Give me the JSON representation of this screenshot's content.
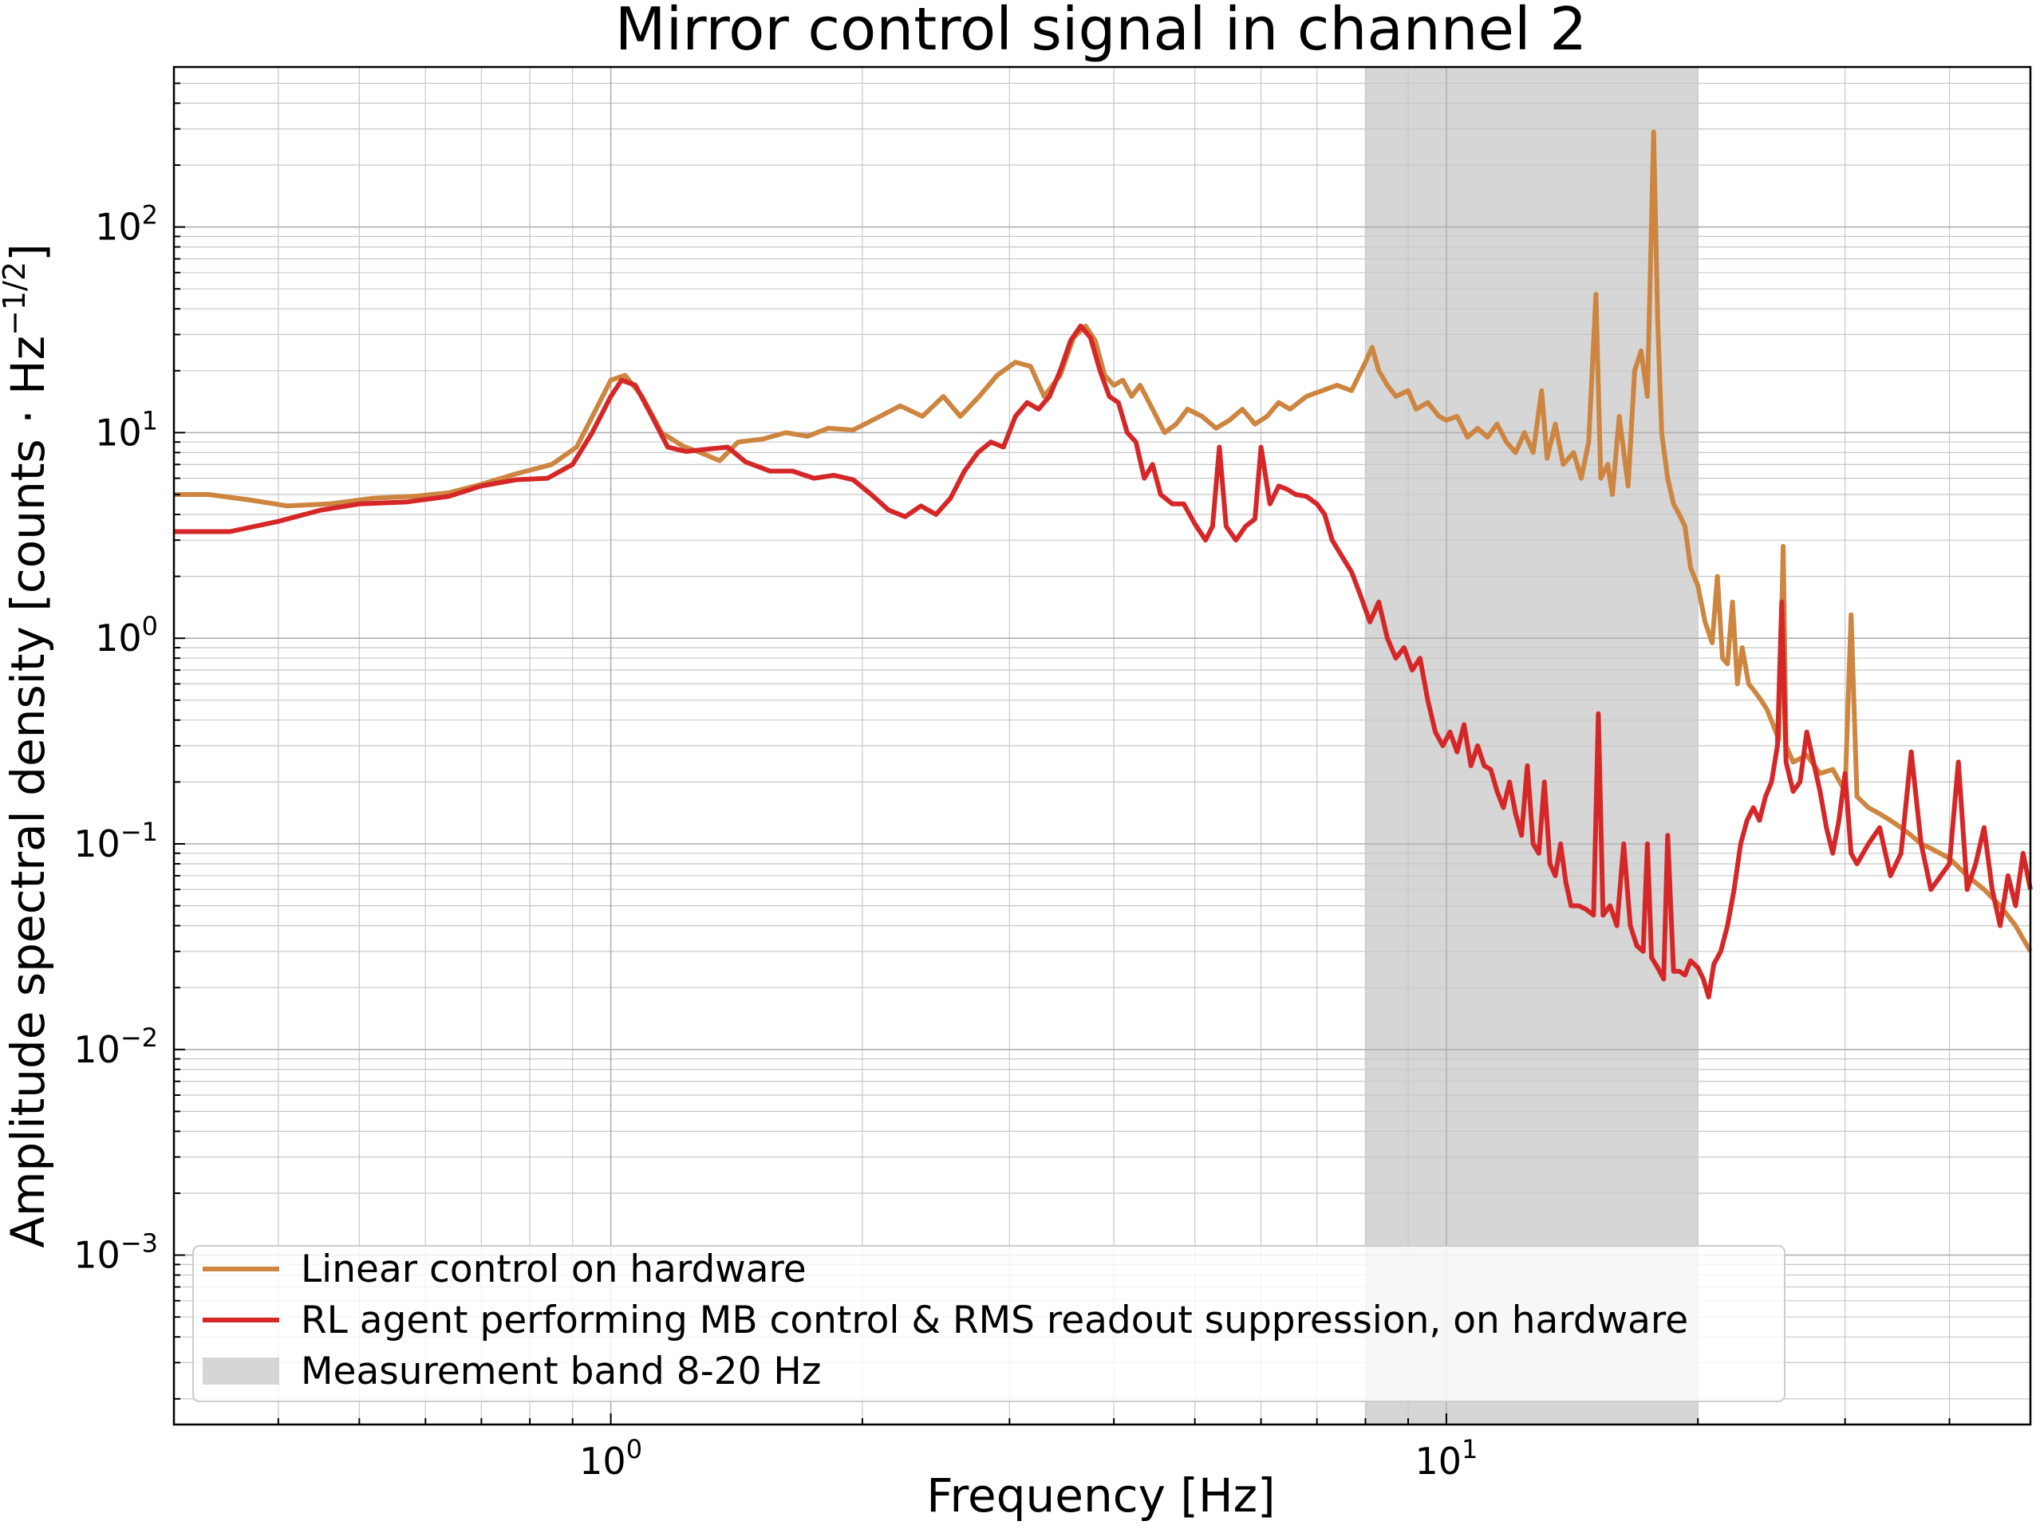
{
  "chart_data": {
    "type": "line",
    "title": "Mirror control signal in channel 2",
    "xlabel": "Frequency [Hz]",
    "ylabel": "Amplitude spectral density [counts · Hz",
    "ylabel_sup": "−1/2",
    "ylabel_end": "]",
    "xscale": "log",
    "yscale": "log",
    "xlim": [
      0.3,
      50
    ],
    "ylim": [
      0.00015,
      600
    ],
    "grid": "both (major and minor)",
    "legend_placement": "lower-left",
    "x_tick_labels": [
      {
        "value": 1,
        "base": "10",
        "exp": "0"
      },
      {
        "value": 10,
        "base": "10",
        "exp": "1"
      }
    ],
    "y_tick_labels": [
      {
        "value": 0.001,
        "base": "10",
        "exp": "−3"
      },
      {
        "value": 0.01,
        "base": "10",
        "exp": "−2"
      },
      {
        "value": 0.1,
        "base": "10",
        "exp": "−1"
      },
      {
        "value": 1,
        "base": "10",
        "exp": "0"
      },
      {
        "value": 10,
        "base": "10",
        "exp": "1"
      },
      {
        "value": 100,
        "base": "10",
        "exp": "2"
      }
    ],
    "band": {
      "name": "Measurement band 8-20 Hz",
      "x_range": [
        8,
        20
      ],
      "color": "#d6d6d6"
    },
    "series": [
      {
        "name": "Linear control on hardware",
        "color": "#cd853f",
        "points": [
          [
            0.3,
            5.0
          ],
          [
            0.33,
            5.0
          ],
          [
            0.37,
            4.7
          ],
          [
            0.41,
            4.4
          ],
          [
            0.46,
            4.5
          ],
          [
            0.52,
            4.8
          ],
          [
            0.58,
            4.9
          ],
          [
            0.64,
            5.1
          ],
          [
            0.7,
            5.6
          ],
          [
            0.77,
            6.3
          ],
          [
            0.85,
            7.0
          ],
          [
            0.91,
            8.5
          ],
          [
            0.96,
            13
          ],
          [
            1.0,
            18
          ],
          [
            1.04,
            19
          ],
          [
            1.09,
            15
          ],
          [
            1.15,
            10
          ],
          [
            1.22,
            8.6
          ],
          [
            1.28,
            8.0
          ],
          [
            1.35,
            7.3
          ],
          [
            1.42,
            9.0
          ],
          [
            1.52,
            9.3
          ],
          [
            1.62,
            10
          ],
          [
            1.72,
            9.6
          ],
          [
            1.82,
            10.5
          ],
          [
            1.95,
            10.3
          ],
          [
            2.1,
            12
          ],
          [
            2.22,
            13.5
          ],
          [
            2.36,
            12
          ],
          [
            2.5,
            15
          ],
          [
            2.62,
            12
          ],
          [
            2.76,
            15
          ],
          [
            2.9,
            19
          ],
          [
            3.05,
            22
          ],
          [
            3.18,
            21
          ],
          [
            3.3,
            15
          ],
          [
            3.45,
            19
          ],
          [
            3.58,
            29
          ],
          [
            3.7,
            33
          ],
          [
            3.8,
            28
          ],
          [
            3.9,
            19
          ],
          [
            4.0,
            17
          ],
          [
            4.1,
            18
          ],
          [
            4.2,
            15
          ],
          [
            4.3,
            17
          ],
          [
            4.45,
            13
          ],
          [
            4.6,
            10
          ],
          [
            4.75,
            11
          ],
          [
            4.9,
            13
          ],
          [
            5.1,
            12
          ],
          [
            5.3,
            10.5
          ],
          [
            5.5,
            11.5
          ],
          [
            5.7,
            13
          ],
          [
            5.9,
            11
          ],
          [
            6.1,
            12
          ],
          [
            6.3,
            14
          ],
          [
            6.5,
            13
          ],
          [
            6.8,
            15
          ],
          [
            7.1,
            16
          ],
          [
            7.4,
            17
          ],
          [
            7.7,
            16
          ],
          [
            8.0,
            22
          ],
          [
            8.15,
            26
          ],
          [
            8.3,
            20
          ],
          [
            8.5,
            17
          ],
          [
            8.7,
            15
          ],
          [
            9.0,
            16
          ],
          [
            9.2,
            13
          ],
          [
            9.5,
            14
          ],
          [
            9.8,
            12
          ],
          [
            10.0,
            11.5
          ],
          [
            10.3,
            12
          ],
          [
            10.6,
            9.5
          ],
          [
            10.9,
            10.5
          ],
          [
            11.2,
            9.5
          ],
          [
            11.5,
            11
          ],
          [
            11.8,
            9
          ],
          [
            12.1,
            8
          ],
          [
            12.4,
            10
          ],
          [
            12.7,
            8
          ],
          [
            13.0,
            16
          ],
          [
            13.2,
            7.5
          ],
          [
            13.5,
            11
          ],
          [
            13.8,
            7
          ],
          [
            14.2,
            8
          ],
          [
            14.5,
            6
          ],
          [
            14.8,
            9
          ],
          [
            15.1,
            47
          ],
          [
            15.3,
            6
          ],
          [
            15.6,
            7
          ],
          [
            15.8,
            5
          ],
          [
            16.1,
            12
          ],
          [
            16.5,
            5.5
          ],
          [
            16.8,
            20
          ],
          [
            17.1,
            25
          ],
          [
            17.4,
            15
          ],
          [
            17.7,
            290
          ],
          [
            17.9,
            35
          ],
          [
            18.1,
            10
          ],
          [
            18.4,
            6
          ],
          [
            18.7,
            4.5
          ],
          [
            19.0,
            4
          ],
          [
            19.3,
            3.5
          ],
          [
            19.6,
            2.2
          ],
          [
            20.0,
            1.8
          ],
          [
            20.4,
            1.2
          ],
          [
            20.8,
            0.95
          ],
          [
            21.1,
            2
          ],
          [
            21.4,
            0.8
          ],
          [
            21.7,
            0.75
          ],
          [
            22.0,
            1.5
          ],
          [
            22.3,
            0.6
          ],
          [
            22.6,
            0.9
          ],
          [
            23.0,
            0.6
          ],
          [
            23.4,
            0.55
          ],
          [
            23.8,
            0.5
          ],
          [
            24.2,
            0.45
          ],
          [
            24.6,
            0.38
          ],
          [
            25.0,
            0.32
          ],
          [
            25.3,
            2.8
          ],
          [
            25.5,
            0.3
          ],
          [
            26,
            0.25
          ],
          [
            27,
            0.27
          ],
          [
            28,
            0.22
          ],
          [
            29,
            0.23
          ],
          [
            30,
            0.18
          ],
          [
            30.5,
            1.3
          ],
          [
            31,
            0.17
          ],
          [
            32,
            0.15
          ],
          [
            33,
            0.14
          ],
          [
            34,
            0.13
          ],
          [
            35,
            0.12
          ],
          [
            36,
            0.11
          ],
          [
            37,
            0.1
          ],
          [
            38,
            0.095
          ],
          [
            40,
            0.085
          ],
          [
            42,
            0.07
          ],
          [
            44,
            0.06
          ],
          [
            46,
            0.05
          ],
          [
            48,
            0.04
          ],
          [
            50,
            0.03
          ]
        ]
      },
      {
        "name": "RL agent performing MB control & RMS readout suppression, on hardware",
        "color": "#d62728",
        "points": [
          [
            0.3,
            3.3
          ],
          [
            0.35,
            3.3
          ],
          [
            0.4,
            3.7
          ],
          [
            0.45,
            4.2
          ],
          [
            0.5,
            4.5
          ],
          [
            0.57,
            4.6
          ],
          [
            0.64,
            4.9
          ],
          [
            0.7,
            5.5
          ],
          [
            0.77,
            5.9
          ],
          [
            0.84,
            6.0
          ],
          [
            0.9,
            7.0
          ],
          [
            0.95,
            10
          ],
          [
            1.0,
            15
          ],
          [
            1.03,
            18
          ],
          [
            1.07,
            17
          ],
          [
            1.12,
            12
          ],
          [
            1.17,
            8.5
          ],
          [
            1.23,
            8.1
          ],
          [
            1.3,
            8.3
          ],
          [
            1.38,
            8.5
          ],
          [
            1.45,
            7.2
          ],
          [
            1.55,
            6.5
          ],
          [
            1.65,
            6.5
          ],
          [
            1.75,
            6.0
          ],
          [
            1.85,
            6.2
          ],
          [
            1.95,
            5.9
          ],
          [
            2.05,
            5.0
          ],
          [
            2.15,
            4.2
          ],
          [
            2.25,
            3.9
          ],
          [
            2.35,
            4.4
          ],
          [
            2.45,
            4.0
          ],
          [
            2.55,
            4.8
          ],
          [
            2.65,
            6.5
          ],
          [
            2.75,
            8
          ],
          [
            2.85,
            9
          ],
          [
            2.95,
            8.5
          ],
          [
            3.05,
            12
          ],
          [
            3.15,
            14
          ],
          [
            3.25,
            13
          ],
          [
            3.35,
            15
          ],
          [
            3.45,
            20
          ],
          [
            3.55,
            28
          ],
          [
            3.65,
            33
          ],
          [
            3.75,
            29
          ],
          [
            3.85,
            20
          ],
          [
            3.95,
            15
          ],
          [
            4.05,
            14
          ],
          [
            4.15,
            10
          ],
          [
            4.25,
            9
          ],
          [
            4.35,
            6
          ],
          [
            4.45,
            7
          ],
          [
            4.55,
            5
          ],
          [
            4.7,
            4.5
          ],
          [
            4.85,
            4.5
          ],
          [
            5.0,
            3.6
          ],
          [
            5.15,
            3.0
          ],
          [
            5.25,
            3.5
          ],
          [
            5.35,
            8.5
          ],
          [
            5.45,
            3.5
          ],
          [
            5.6,
            3.0
          ],
          [
            5.75,
            3.5
          ],
          [
            5.9,
            3.8
          ],
          [
            6.0,
            8.5
          ],
          [
            6.15,
            4.5
          ],
          [
            6.3,
            5.5
          ],
          [
            6.45,
            5.3
          ],
          [
            6.6,
            5.0
          ],
          [
            6.8,
            4.9
          ],
          [
            7.0,
            4.5
          ],
          [
            7.15,
            4.0
          ],
          [
            7.3,
            3.0
          ],
          [
            7.5,
            2.5
          ],
          [
            7.7,
            2.1
          ],
          [
            7.9,
            1.6
          ],
          [
            8.1,
            1.2
          ],
          [
            8.3,
            1.5
          ],
          [
            8.5,
            1.0
          ],
          [
            8.7,
            0.8
          ],
          [
            8.9,
            0.9
          ],
          [
            9.1,
            0.7
          ],
          [
            9.3,
            0.8
          ],
          [
            9.5,
            0.5
          ],
          [
            9.7,
            0.35
          ],
          [
            9.9,
            0.3
          ],
          [
            10.1,
            0.35
          ],
          [
            10.3,
            0.28
          ],
          [
            10.5,
            0.38
          ],
          [
            10.7,
            0.24
          ],
          [
            10.9,
            0.3
          ],
          [
            11.1,
            0.24
          ],
          [
            11.3,
            0.23
          ],
          [
            11.5,
            0.18
          ],
          [
            11.7,
            0.15
          ],
          [
            11.9,
            0.2
          ],
          [
            12.1,
            0.14
          ],
          [
            12.3,
            0.11
          ],
          [
            12.5,
            0.24
          ],
          [
            12.7,
            0.1
          ],
          [
            12.9,
            0.09
          ],
          [
            13.1,
            0.2
          ],
          [
            13.3,
            0.08
          ],
          [
            13.5,
            0.07
          ],
          [
            13.7,
            0.1
          ],
          [
            13.9,
            0.065
          ],
          [
            14.1,
            0.05
          ],
          [
            14.4,
            0.05
          ],
          [
            14.7,
            0.048
          ],
          [
            15.0,
            0.045
          ],
          [
            15.2,
            0.43
          ],
          [
            15.4,
            0.045
          ],
          [
            15.7,
            0.05
          ],
          [
            16.0,
            0.04
          ],
          [
            16.3,
            0.1
          ],
          [
            16.6,
            0.04
          ],
          [
            16.9,
            0.032
          ],
          [
            17.2,
            0.03
          ],
          [
            17.4,
            0.1
          ],
          [
            17.6,
            0.028
          ],
          [
            17.9,
            0.025
          ],
          [
            18.2,
            0.022
          ],
          [
            18.4,
            0.11
          ],
          [
            18.7,
            0.024
          ],
          [
            19.0,
            0.024
          ],
          [
            19.3,
            0.023
          ],
          [
            19.6,
            0.027
          ],
          [
            20.0,
            0.025
          ],
          [
            20.3,
            0.022
          ],
          [
            20.6,
            0.018
          ],
          [
            20.9,
            0.026
          ],
          [
            21.3,
            0.03
          ],
          [
            21.7,
            0.04
          ],
          [
            22.1,
            0.06
          ],
          [
            22.5,
            0.1
          ],
          [
            22.9,
            0.13
          ],
          [
            23.3,
            0.15
          ],
          [
            23.7,
            0.13
          ],
          [
            24.1,
            0.17
          ],
          [
            24.5,
            0.2
          ],
          [
            24.9,
            0.3
          ],
          [
            25.2,
            1.5
          ],
          [
            25.5,
            0.25
          ],
          [
            26,
            0.18
          ],
          [
            26.5,
            0.2
          ],
          [
            27,
            0.35
          ],
          [
            27.5,
            0.25
          ],
          [
            28,
            0.18
          ],
          [
            28.5,
            0.12
          ],
          [
            29,
            0.09
          ],
          [
            29.5,
            0.13
          ],
          [
            30,
            0.22
          ],
          [
            30.5,
            0.09
          ],
          [
            31,
            0.08
          ],
          [
            32,
            0.1
          ],
          [
            33,
            0.12
          ],
          [
            34,
            0.07
          ],
          [
            35,
            0.09
          ],
          [
            36,
            0.28
          ],
          [
            37,
            0.1
          ],
          [
            38,
            0.06
          ],
          [
            40,
            0.08
          ],
          [
            41,
            0.25
          ],
          [
            42,
            0.06
          ],
          [
            43,
            0.08
          ],
          [
            44,
            0.12
          ],
          [
            45,
            0.06
          ],
          [
            46,
            0.04
          ],
          [
            47,
            0.07
          ],
          [
            48,
            0.05
          ],
          [
            49,
            0.09
          ],
          [
            50,
            0.06
          ]
        ]
      }
    ]
  }
}
